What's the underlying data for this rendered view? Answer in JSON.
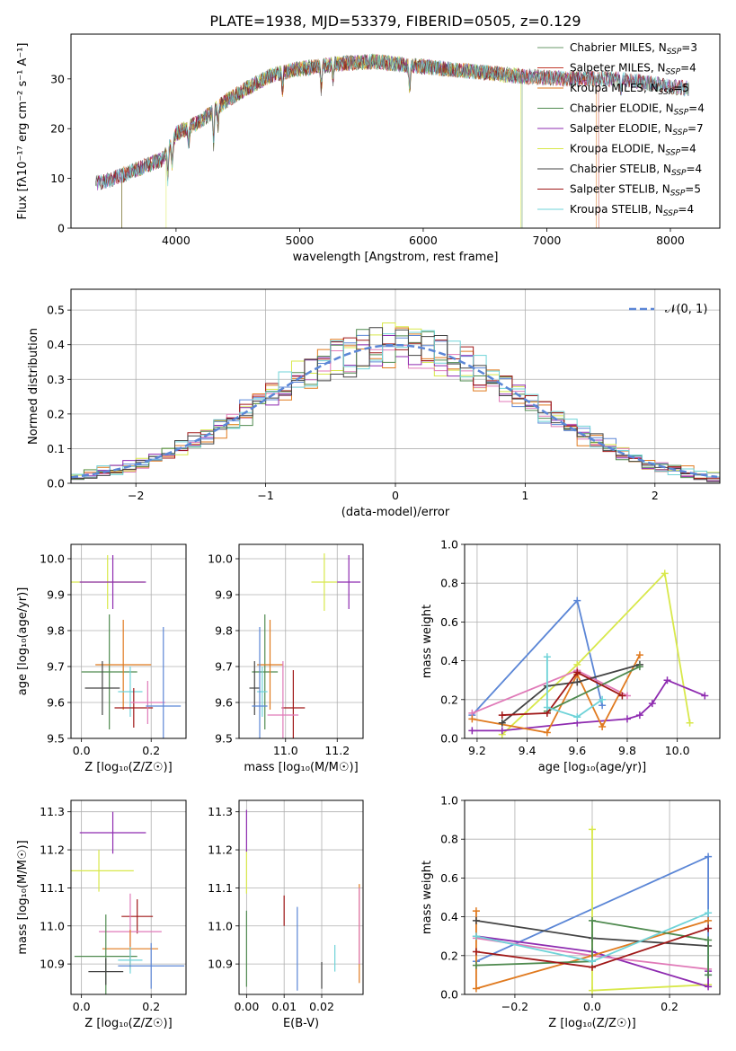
{
  "title": "PLATE=1938, MJD=53379, FIBERID=0505, z=0.129",
  "colors": {
    "chabrier_miles": "#6a9a6a",
    "salpeter_miles": "#c0392b",
    "kroupa_miles": "#e07a1f",
    "chabrier_elodie": "#4f8a4f",
    "salpeter_elodie": "#8e2bb0",
    "kroupa_elodie": "#d8e84a",
    "chabrier_stelib": "#444444",
    "salpeter_stelib": "#a01818",
    "kroupa_stelib": "#6fd3d8",
    "pink": "#e07ab8",
    "blue": "#5b86d6",
    "normal_curve": "#5b86d6"
  },
  "chart_data": [
    {
      "id": "spectrum",
      "type": "line",
      "xlabel": "wavelength [Angstrom, rest frame]",
      "ylabel": "Flux [fλ10⁻¹⁷ erg cm⁻² s⁻¹ A⁻¹]",
      "xlim": [
        3150,
        8400
      ],
      "ylim": [
        0,
        39
      ],
      "xticks": [
        4000,
        5000,
        6000,
        7000,
        8000
      ],
      "yticks": [
        0,
        10,
        20,
        30
      ],
      "grid": false,
      "legend_position": "top-right",
      "continuum": {
        "x": [
          3350,
          3500,
          3700,
          3900,
          4000,
          4200,
          4400,
          4600,
          4800,
          5000,
          5300,
          5600,
          6000,
          6400,
          6800,
          7200,
          7600,
          8000,
          8150
        ],
        "y": [
          9,
          10,
          12,
          14,
          19,
          21.5,
          25.5,
          28.5,
          31,
          32,
          33,
          33.5,
          32.5,
          31.5,
          30.5,
          30,
          30,
          28.5,
          28
        ]
      },
      "series": [
        {
          "name": "Chabrier MILES, N",
          "sub": "SSP",
          "suffix": "=3",
          "color_key": "chabrier_miles"
        },
        {
          "name": "Salpeter MILES, N",
          "sub": "SSP",
          "suffix": "=4",
          "color_key": "salpeter_miles"
        },
        {
          "name": "Kroupa MILES, N",
          "sub": "SSP",
          "suffix": "=5",
          "color_key": "kroupa_miles"
        },
        {
          "name": "Chabrier ELODIE, N",
          "sub": "SSP",
          "suffix": "=4",
          "color_key": "chabrier_elodie"
        },
        {
          "name": "Salpeter ELODIE, N",
          "sub": "SSP",
          "suffix": "=7",
          "color_key": "salpeter_elodie"
        },
        {
          "name": "Kroupa ELODIE, N",
          "sub": "SSP",
          "suffix": "=4",
          "color_key": "kroupa_elodie"
        },
        {
          "name": "Chabrier STELIB, N",
          "sub": "SSP",
          "suffix": "=4",
          "color_key": "chabrier_stelib"
        },
        {
          "name": "Salpeter STELIB, N",
          "sub": "SSP",
          "suffix": "=5",
          "color_key": "salpeter_stelib"
        },
        {
          "name": "Kroupa STELIB, N",
          "sub": "SSP",
          "suffix": "=4",
          "color_key": "kroupa_stelib"
        }
      ]
    },
    {
      "id": "residuals",
      "type": "histogram",
      "xlabel": "(data-model)/error",
      "ylabel": "Normed distribution",
      "xlim": [
        -2.5,
        2.5
      ],
      "ylim": [
        0,
        0.56
      ],
      "xticks": [
        -2,
        -1,
        0,
        1,
        2
      ],
      "yticks": [
        0.0,
        0.1,
        0.2,
        0.3,
        0.4,
        0.5
      ],
      "grid": true,
      "legend_position": "top-right",
      "normal_label": "𝒩(0, 1)",
      "bin_width": 0.1
    },
    {
      "id": "age_vs_Z",
      "type": "errorbar",
      "xlabel": "Z [log₁₀(Z/Z☉)]",
      "ylabel": "age  [log₁₀(age/yr)]",
      "xlim": [
        -0.03,
        0.3
      ],
      "ylim": [
        9.5,
        10.04
      ],
      "xticks": [
        0.0,
        0.2
      ],
      "yticks": [
        9.5,
        9.6,
        9.7,
        9.8,
        9.9,
        10.0
      ],
      "grid": true,
      "points": [
        {
          "x": 0.075,
          "y": 9.935,
          "xerr": 0.105,
          "yerr": 0.075,
          "color_key": "kroupa_elodie"
        },
        {
          "x": 0.09,
          "y": 9.935,
          "xerr": 0.095,
          "yerr": 0.075,
          "color_key": "salpeter_elodie"
        },
        {
          "x": 0.08,
          "y": 9.685,
          "xerr": 0.08,
          "yerr": 0.16,
          "color_key": "chabrier_elodie"
        },
        {
          "x": 0.12,
          "y": 9.705,
          "xerr": 0.08,
          "yerr": 0.125,
          "color_key": "kroupa_miles"
        },
        {
          "x": 0.06,
          "y": 9.64,
          "xerr": 0.05,
          "yerr": 0.075,
          "color_key": "chabrier_stelib"
        },
        {
          "x": 0.14,
          "y": 9.63,
          "xerr": 0.035,
          "yerr": 0.07,
          "color_key": "kroupa_stelib"
        },
        {
          "x": 0.15,
          "y": 9.585,
          "xerr": 0.055,
          "yerr": 0.055,
          "color_key": "salpeter_stelib"
        },
        {
          "x": 0.19,
          "y": 9.6,
          "xerr": 0.05,
          "yerr": 0.06,
          "color_key": "pink"
        },
        {
          "x": 0.235,
          "y": 9.59,
          "xerr": 0.05,
          "yerr": 0.22,
          "color_key": "blue"
        }
      ]
    },
    {
      "id": "age_vs_mass",
      "type": "errorbar",
      "xlabel": "mass [log₁₀(M/M☉)]",
      "ylabel": "",
      "xlim": [
        10.82,
        11.3
      ],
      "ylim": [
        9.5,
        10.04
      ],
      "xticks": [
        11.0,
        11.2
      ],
      "yticks": [
        9.5,
        9.6,
        9.7,
        9.8,
        9.9,
        10.0
      ],
      "grid": true,
      "points": [
        {
          "x": 11.15,
          "y": 9.935,
          "xerr": 0.05,
          "yerr": 0.08,
          "color_key": "kroupa_elodie"
        },
        {
          "x": 11.245,
          "y": 9.935,
          "xerr": 0.045,
          "yerr": 0.075,
          "color_key": "salpeter_elodie"
        },
        {
          "x": 10.92,
          "y": 9.685,
          "xerr": 0.05,
          "yerr": 0.16,
          "color_key": "chabrier_elodie"
        },
        {
          "x": 10.94,
          "y": 9.705,
          "xerr": 0.05,
          "yerr": 0.125,
          "color_key": "kroupa_miles"
        },
        {
          "x": 10.88,
          "y": 9.64,
          "xerr": 0.02,
          "yerr": 0.075,
          "color_key": "chabrier_stelib"
        },
        {
          "x": 10.91,
          "y": 9.63,
          "xerr": 0.02,
          "yerr": 0.07,
          "color_key": "kroupa_stelib"
        },
        {
          "x": 11.03,
          "y": 9.585,
          "xerr": 0.045,
          "yerr": 0.105,
          "color_key": "salpeter_stelib"
        },
        {
          "x": 10.99,
          "y": 9.565,
          "xerr": 0.06,
          "yerr": 0.15,
          "color_key": "pink"
        },
        {
          "x": 10.9,
          "y": 9.59,
          "xerr": 0.03,
          "yerr": 0.22,
          "color_key": "blue"
        }
      ]
    },
    {
      "id": "weight_vs_age",
      "type": "line",
      "xlabel": "age  [log₁₀(age/yr)]",
      "ylabel": "mass weight",
      "xlim": [
        9.15,
        10.17
      ],
      "ylim": [
        0,
        1.0
      ],
      "xticks": [
        9.2,
        9.4,
        9.6,
        9.8,
        10.0
      ],
      "yticks": [
        0.0,
        0.2,
        0.4,
        0.6,
        0.8,
        1.0
      ],
      "grid": true,
      "series": [
        {
          "color_key": "blue",
          "x": [
            9.18,
            9.6,
            9.7
          ],
          "y": [
            0.12,
            0.71,
            0.17
          ]
        },
        {
          "color_key": "kroupa_elodie",
          "x": [
            9.3,
            9.6,
            9.95,
            10.05
          ],
          "y": [
            0.02,
            0.38,
            0.85,
            0.08
          ]
        },
        {
          "color_key": "salpeter_elodie",
          "x": [
            9.18,
            9.3,
            9.6,
            9.8,
            9.85,
            9.9,
            9.96,
            10.11
          ],
          "y": [
            0.04,
            0.04,
            0.08,
            0.1,
            0.12,
            0.18,
            0.3,
            0.22
          ]
        },
        {
          "color_key": "pink",
          "x": [
            9.18,
            9.6,
            9.8
          ],
          "y": [
            0.13,
            0.35,
            0.22
          ]
        },
        {
          "color_key": "kroupa_miles",
          "x": [
            9.18,
            9.48,
            9.6,
            9.7,
            9.85
          ],
          "y": [
            0.1,
            0.03,
            0.33,
            0.06,
            0.43
          ]
        },
        {
          "color_key": "chabrier_stelib",
          "x": [
            9.3,
            9.48,
            9.6,
            9.85
          ],
          "y": [
            0.08,
            0.27,
            0.29,
            0.38
          ]
        },
        {
          "color_key": "chabrier_elodie",
          "x": [
            9.48,
            9.85
          ],
          "y": [
            0.14,
            0.37
          ]
        },
        {
          "color_key": "salpeter_stelib",
          "x": [
            9.3,
            9.48,
            9.6,
            9.78
          ],
          "y": [
            0.12,
            0.13,
            0.34,
            0.22
          ]
        },
        {
          "color_key": "kroupa_stelib",
          "x": [
            9.48,
            9.48,
            9.6,
            9.7
          ],
          "y": [
            0.42,
            0.16,
            0.11,
            0.2
          ]
        }
      ]
    },
    {
      "id": "mass_vs_Z",
      "type": "errorbar",
      "xlabel": "Z [log₁₀(Z/Z☉)]",
      "ylabel": "mass [log₁₀(M/M☉)]",
      "xlim": [
        -0.03,
        0.3
      ],
      "ylim": [
        10.82,
        11.33
      ],
      "xticks": [
        0.0,
        0.2
      ],
      "yticks": [
        10.9,
        11.0,
        11.1,
        11.2,
        11.3
      ],
      "grid": true,
      "points": [
        {
          "x": 0.09,
          "y": 11.245,
          "xerr": 0.095,
          "yerr": 0.055,
          "color_key": "salpeter_elodie"
        },
        {
          "x": 0.05,
          "y": 11.145,
          "xerr": 0.1,
          "yerr": 0.055,
          "color_key": "kroupa_elodie"
        },
        {
          "x": 0.16,
          "y": 11.025,
          "xerr": 0.045,
          "yerr": 0.045,
          "color_key": "salpeter_stelib"
        },
        {
          "x": 0.14,
          "y": 10.985,
          "xerr": 0.09,
          "yerr": 0.1,
          "color_key": "pink"
        },
        {
          "x": 0.14,
          "y": 10.94,
          "xerr": 0.08,
          "yerr": 0.05,
          "color_key": "kroupa_miles"
        },
        {
          "x": 0.07,
          "y": 10.92,
          "xerr": 0.09,
          "yerr": 0.11,
          "color_key": "chabrier_elodie"
        },
        {
          "x": 0.14,
          "y": 10.91,
          "xerr": 0.035,
          "yerr": 0.035,
          "color_key": "kroupa_stelib"
        },
        {
          "x": 0.2,
          "y": 10.895,
          "xerr": 0.095,
          "yerr": 0.06,
          "color_key": "blue"
        },
        {
          "x": 0.07,
          "y": 10.88,
          "xerr": 0.05,
          "yerr": 0.035,
          "color_key": "chabrier_stelib"
        }
      ]
    },
    {
      "id": "mass_vs_ebv",
      "type": "errorbar",
      "xlabel": "E(B-V)",
      "ylabel": "",
      "xlim": [
        -0.002,
        0.031
      ],
      "ylim": [
        10.82,
        11.33
      ],
      "xticks": [
        0.0,
        0.01,
        0.02
      ],
      "yticks": [
        10.9,
        11.0,
        11.1,
        11.2,
        11.3
      ],
      "grid": true,
      "points": [
        {
          "x": 0.0,
          "y": 11.25,
          "yerr": 0.055,
          "color_key": "salpeter_elodie"
        },
        {
          "x": 0.0,
          "y": 11.14,
          "yerr": 0.055,
          "color_key": "kroupa_elodie"
        },
        {
          "x": 0.0,
          "y": 10.94,
          "yerr": 0.1,
          "color_key": "chabrier_elodie"
        },
        {
          "x": 0.01,
          "y": 11.04,
          "yerr": 0.04,
          "color_key": "salpeter_stelib"
        },
        {
          "x": 0.0135,
          "y": 10.94,
          "yerr": 0.11,
          "color_key": "blue"
        },
        {
          "x": 0.02,
          "y": 10.87,
          "yerr": 0.035,
          "color_key": "chabrier_stelib"
        },
        {
          "x": 0.0235,
          "y": 10.915,
          "yerr": 0.035,
          "color_key": "kroupa_stelib"
        },
        {
          "x": 0.03,
          "y": 10.98,
          "yerr": 0.13,
          "color_key": "kroupa_miles"
        },
        {
          "x": 0.03,
          "y": 11.0,
          "yerr": 0.1,
          "color_key": "pink"
        }
      ]
    },
    {
      "id": "weight_vs_Z",
      "type": "line",
      "xlabel": "Z [log₁₀(Z/Z☉)]",
      "ylabel": "mass weight",
      "xlim": [
        -0.33,
        0.33
      ],
      "ylim": [
        0,
        1.0
      ],
      "xticks": [
        -0.2,
        0.0,
        0.2
      ],
      "yticks": [
        0.0,
        0.2,
        0.4,
        0.6,
        0.8,
        1.0
      ],
      "grid": true,
      "series": [
        {
          "color_key": "blue",
          "x": [
            -0.3,
            0.3,
            0.3
          ],
          "y": [
            0.17,
            0.71,
            0.1
          ]
        },
        {
          "color_key": "kroupa_elodie",
          "x": [
            0.0,
            0.0,
            0.3
          ],
          "y": [
            0.85,
            0.02,
            0.05
          ]
        },
        {
          "color_key": "salpeter_elodie",
          "x": [
            -0.3,
            0.0,
            0.3,
            0.3
          ],
          "y": [
            0.3,
            0.22,
            0.04,
            0.12
          ]
        },
        {
          "color_key": "pink",
          "x": [
            -0.3,
            0.0,
            0.3
          ],
          "y": [
            0.29,
            0.2,
            0.13
          ]
        },
        {
          "color_key": "kroupa_miles",
          "x": [
            -0.3,
            -0.3,
            0.0,
            0.3
          ],
          "y": [
            0.43,
            0.03,
            0.2,
            0.38
          ]
        },
        {
          "color_key": "chabrier_stelib",
          "x": [
            -0.3,
            0.0,
            0.3
          ],
          "y": [
            0.38,
            0.29,
            0.25
          ]
        },
        {
          "color_key": "chabrier_elodie",
          "x": [
            -0.3,
            0.0,
            0.0,
            0.3,
            0.3
          ],
          "y": [
            0.15,
            0.17,
            0.38,
            0.28,
            0.1
          ]
        },
        {
          "color_key": "salpeter_stelib",
          "x": [
            -0.3,
            0.0,
            0.3
          ],
          "y": [
            0.22,
            0.14,
            0.34
          ]
        },
        {
          "color_key": "kroupa_stelib",
          "x": [
            -0.3,
            0.0,
            0.3
          ],
          "y": [
            0.3,
            0.17,
            0.42
          ]
        }
      ]
    }
  ]
}
